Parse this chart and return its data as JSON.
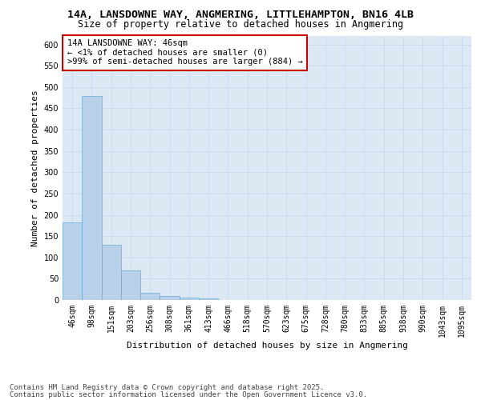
{
  "title": "14A, LANSDOWNE WAY, ANGMERING, LITTLEHAMPTON, BN16 4LB",
  "subtitle": "Size of property relative to detached houses in Angmering",
  "xlabel": "Distribution of detached houses by size in Angmering",
  "ylabel": "Number of detached properties",
  "bar_color": "#b8d0e8",
  "bar_edge_color": "#6aaad4",
  "background_color": "#dce9f5",
  "categories": [
    "46sqm",
    "98sqm",
    "151sqm",
    "203sqm",
    "256sqm",
    "308sqm",
    "361sqm",
    "413sqm",
    "466sqm",
    "518sqm",
    "570sqm",
    "623sqm",
    "675sqm",
    "728sqm",
    "780sqm",
    "833sqm",
    "885sqm",
    "938sqm",
    "990sqm",
    "1043sqm",
    "1095sqm"
  ],
  "values": [
    182,
    480,
    130,
    70,
    17,
    10,
    6,
    3,
    0,
    0,
    0,
    0,
    0,
    0,
    0,
    0,
    0,
    0,
    0,
    0,
    0
  ],
  "ylim": [
    0,
    620
  ],
  "yticks": [
    0,
    50,
    100,
    150,
    200,
    250,
    300,
    350,
    400,
    450,
    500,
    550,
    600
  ],
  "annotation_text": "14A LANSDOWNE WAY: 46sqm\n← <1% of detached houses are smaller (0)\n>99% of semi-detached houses are larger (884) →",
  "annotation_box_color": "#ffffff",
  "annotation_box_edge": "#cc0000",
  "footer_line1": "Contains HM Land Registry data © Crown copyright and database right 2025.",
  "footer_line2": "Contains public sector information licensed under the Open Government Licence v3.0.",
  "grid_color": "#c8d8ec",
  "title_fontsize": 9.5,
  "subtitle_fontsize": 8.5,
  "axis_label_fontsize": 8,
  "tick_fontsize": 7,
  "annotation_fontsize": 7.5,
  "footer_fontsize": 6.5
}
